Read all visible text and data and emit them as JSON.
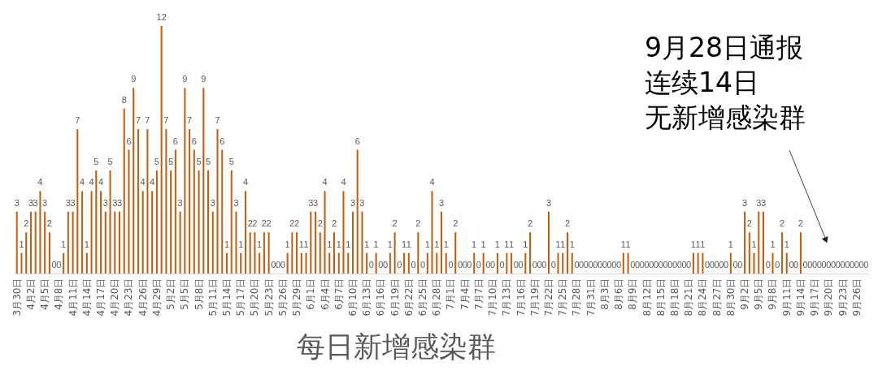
{
  "chart_data": {
    "type": "bar",
    "title": "每日新增感染群",
    "categories": [
      "3月30日",
      null,
      null,
      "4月2日",
      null,
      null,
      "4月5日",
      null,
      null,
      "4月8日",
      null,
      null,
      "4月11日",
      null,
      null,
      "4月14日",
      null,
      null,
      "4月17日",
      null,
      null,
      "4月20日",
      null,
      null,
      "4月23日",
      null,
      null,
      "4月26日",
      null,
      null,
      "4月29日",
      null,
      null,
      "5月2日",
      null,
      null,
      "5月5日",
      null,
      null,
      "5月8日",
      null,
      null,
      "5月11日",
      null,
      null,
      "5月14日",
      null,
      null,
      "5月17日",
      null,
      null,
      "5月20日",
      null,
      null,
      "5月23日",
      null,
      null,
      "5月26日",
      null,
      null,
      "5月29日",
      null,
      null,
      "6月1日",
      null,
      null,
      "6月4日",
      null,
      null,
      "6月7日",
      null,
      null,
      "6月10日",
      null,
      null,
      "6月13日",
      null,
      null,
      "6月16日",
      null,
      null,
      "6月19日",
      null,
      null,
      "6月22日",
      null,
      null,
      "6月25日",
      null,
      null,
      "6月28日",
      null,
      null,
      "7月1日",
      null,
      null,
      "7月4日",
      null,
      null,
      "7月7日",
      null,
      null,
      "7月10日",
      null,
      null,
      "7月13日",
      null,
      null,
      "7月16日",
      null,
      null,
      "7月19日",
      null,
      null,
      "7月22日",
      null,
      null,
      "7月25日",
      null,
      null,
      "7月28日",
      null,
      null,
      "7月31日",
      null,
      null,
      "8月3日",
      null,
      null,
      "8月6日",
      null,
      null,
      "8月9日",
      null,
      null,
      "8月12日",
      null,
      null,
      "8月15日",
      null,
      null,
      "8月18日",
      null,
      null,
      "8月21日",
      null,
      null,
      "8月24日",
      null,
      null,
      "8月27日",
      null,
      null,
      "8月30日",
      null,
      null,
      "9月2日",
      null,
      null,
      "9月5日",
      null,
      null,
      "9月8日",
      null,
      null,
      "9月11日",
      null,
      null,
      "9月14日",
      null,
      null,
      "9月17日",
      null,
      null,
      "9月20日",
      null,
      null,
      "9月23日",
      null,
      null,
      "9月26日",
      null,
      null
    ],
    "values": [
      3,
      1,
      2,
      3,
      3,
      4,
      3,
      2,
      0,
      0,
      1,
      3,
      3,
      7,
      4,
      1,
      4,
      5,
      4,
      3,
      5,
      3,
      3,
      8,
      6,
      9,
      7,
      4,
      7,
      4,
      5,
      12,
      7,
      5,
      6,
      3,
      9,
      7,
      6,
      5,
      9,
      5,
      3,
      7,
      6,
      1,
      5,
      3,
      1,
      4,
      2,
      2,
      1,
      2,
      2,
      0,
      0,
      0,
      1,
      2,
      2,
      1,
      1,
      3,
      3,
      2,
      4,
      1,
      2,
      1,
      4,
      1,
      3,
      6,
      3,
      1,
      0,
      1,
      0,
      0,
      1,
      2,
      0,
      1,
      1,
      0,
      2,
      0,
      1,
      4,
      1,
      3,
      1,
      0,
      2,
      0,
      0,
      0,
      1,
      0,
      1,
      0,
      0,
      1,
      0,
      1,
      1,
      0,
      0,
      1,
      2,
      0,
      0,
      0,
      3,
      0,
      1,
      1,
      2,
      1,
      0,
      0,
      0,
      0,
      0,
      0,
      0,
      0,
      0,
      0,
      1,
      1,
      0,
      0,
      0,
      0,
      0,
      0,
      0,
      0,
      0,
      0,
      0,
      0,
      0,
      1,
      1,
      1,
      0,
      0,
      0,
      0,
      0,
      1,
      0,
      0,
      3,
      2,
      1,
      3,
      3,
      0,
      1,
      0,
      2,
      1,
      0,
      0,
      2,
      0,
      0,
      0,
      0,
      0,
      0,
      0,
      0,
      0,
      0,
      0,
      0,
      0,
      0
    ],
    "color": "#c55a11",
    "ylim": [
      0,
      12
    ],
    "data_labels": true,
    "tick_labels": "x",
    "annotations": [
      "9月28日通报",
      "连续14日",
      "无新增感染群"
    ]
  }
}
